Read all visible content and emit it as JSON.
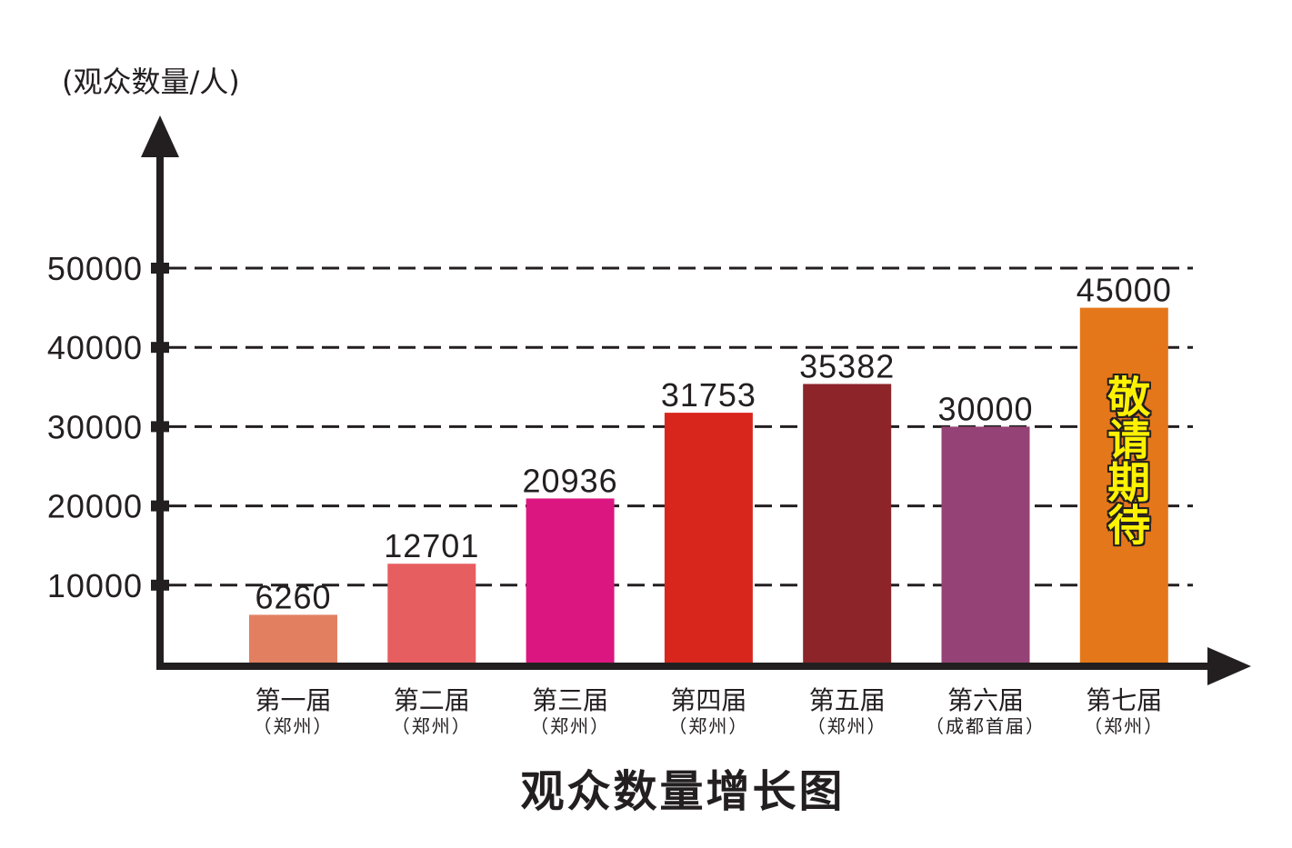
{
  "chart_data": {
    "type": "bar",
    "title": "观众数量增长图",
    "ylabel": "(观众数量/人)",
    "categories": [
      "第一届",
      "第二届",
      "第三届",
      "第四届",
      "第五届",
      "第六届",
      "第七届"
    ],
    "category_sublabels": [
      "（郑州）",
      "（郑州）",
      "（郑州）",
      "（郑州）",
      "（郑州）",
      "（成都首届）",
      "（郑州）"
    ],
    "values": [
      6260,
      12701,
      20936,
      31753,
      35382,
      30000,
      45000
    ],
    "ylim": [
      0,
      50000
    ],
    "yticks": [
      10000,
      20000,
      30000,
      40000,
      50000
    ],
    "grid": true,
    "bar_colors": [
      "#E27F60",
      "#E65E60",
      "#DC1680",
      "#D9261C",
      "#8C242A",
      "#954376",
      "#E5771B"
    ],
    "highlight": {
      "category_index": 6,
      "label_color": "#D9272E"
    },
    "annotation": {
      "category_index": 6,
      "text": "敬请期待",
      "fill": "#FFF200",
      "outline": "#231F20"
    }
  },
  "colors": {
    "axis": "#231F20",
    "text": "#231F20",
    "background": "#FFFFFF"
  }
}
